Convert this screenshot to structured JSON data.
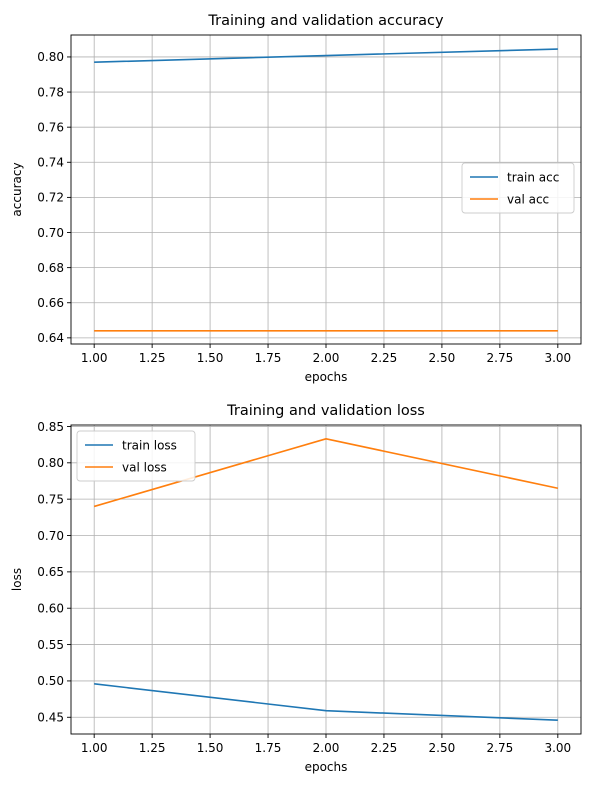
{
  "chart_data": [
    {
      "type": "line",
      "title": "Training and validation accuracy",
      "xlabel": "epochs",
      "ylabel": "accuracy",
      "xlim": [
        0.9,
        3.1
      ],
      "ylim": [
        0.6365,
        0.8125
      ],
      "xticks": [
        1.0,
        1.25,
        1.5,
        1.75,
        2.0,
        2.25,
        2.5,
        2.75,
        3.0
      ],
      "xtick_labels": [
        "1.00",
        "1.25",
        "1.50",
        "1.75",
        "2.00",
        "2.25",
        "2.50",
        "2.75",
        "3.00"
      ],
      "yticks": [
        0.64,
        0.66,
        0.68,
        0.7,
        0.72,
        0.74,
        0.76,
        0.78,
        0.8
      ],
      "ytick_labels": [
        "0.64",
        "0.66",
        "0.68",
        "0.70",
        "0.72",
        "0.74",
        "0.76",
        "0.78",
        "0.80"
      ],
      "grid": true,
      "legend_position": "center-right",
      "series": [
        {
          "name": "train acc",
          "color": "#1f77b4",
          "x": [
            1,
            2,
            3
          ],
          "y": [
            0.797,
            0.8008,
            0.8045
          ]
        },
        {
          "name": "val acc",
          "color": "#ff7f0e",
          "x": [
            1,
            2,
            3
          ],
          "y": [
            0.644,
            0.644,
            0.644
          ]
        }
      ]
    },
    {
      "type": "line",
      "title": "Training and validation loss",
      "xlabel": "epochs",
      "ylabel": "loss",
      "xlim": [
        0.9,
        3.1
      ],
      "ylim": [
        0.427,
        0.852
      ],
      "xticks": [
        1.0,
        1.25,
        1.5,
        1.75,
        2.0,
        2.25,
        2.5,
        2.75,
        3.0
      ],
      "xtick_labels": [
        "1.00",
        "1.25",
        "1.50",
        "1.75",
        "2.00",
        "2.25",
        "2.50",
        "2.75",
        "3.00"
      ],
      "yticks": [
        0.45,
        0.5,
        0.55,
        0.6,
        0.65,
        0.7,
        0.75,
        0.8,
        0.85
      ],
      "ytick_labels": [
        "0.45",
        "0.50",
        "0.55",
        "0.60",
        "0.65",
        "0.70",
        "0.75",
        "0.80",
        "0.85"
      ],
      "grid": true,
      "legend_position": "top-left",
      "series": [
        {
          "name": "train loss",
          "color": "#1f77b4",
          "x": [
            1,
            2,
            3
          ],
          "y": [
            0.496,
            0.459,
            0.446
          ]
        },
        {
          "name": "val loss",
          "color": "#ff7f0e",
          "x": [
            1,
            2,
            3
          ],
          "y": [
            0.74,
            0.833,
            0.765
          ]
        }
      ]
    }
  ]
}
